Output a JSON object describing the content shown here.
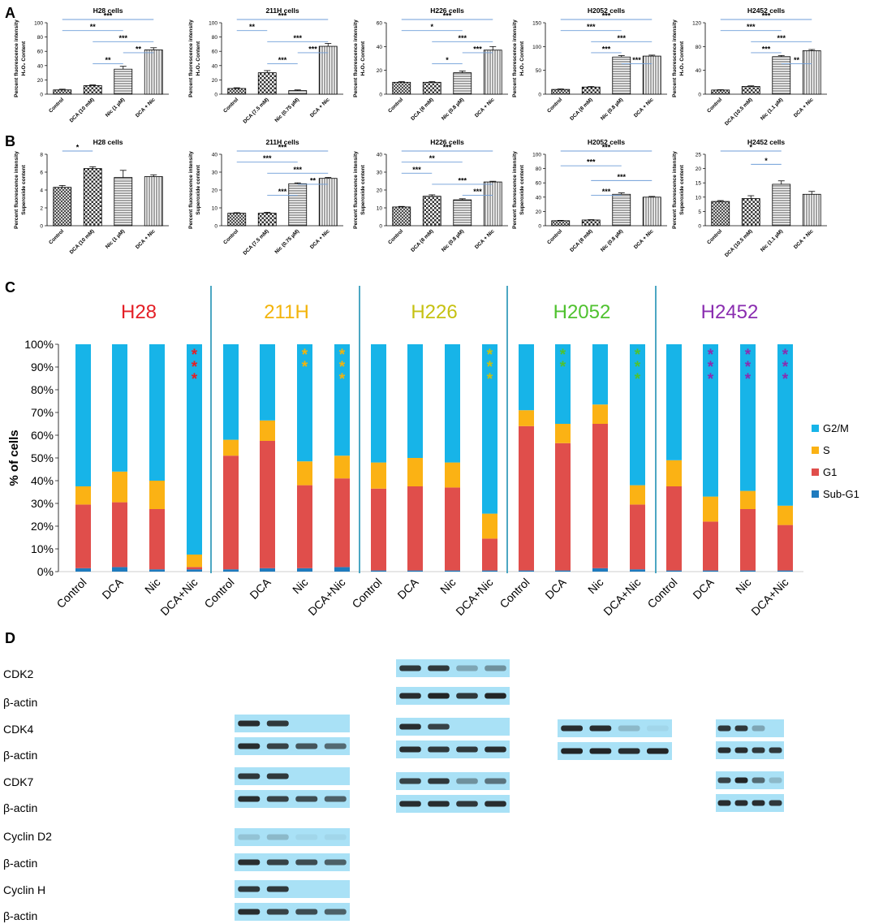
{
  "figure": {
    "panel_labels": [
      "A",
      "B",
      "C",
      "D"
    ],
    "colors": {
      "g2m": "#17b4e8",
      "s": "#fbb214",
      "g1": "#e04e4b",
      "subg1": "#1f7bbe",
      "sig_line": "#6f9ed8",
      "separator": "#1f91b4",
      "blot_bg": "#a9e1f6",
      "band": "#1a1a1a"
    }
  },
  "chart_data": [
    {
      "id": "A1",
      "type": "bar",
      "title": "H28 cells",
      "ylabel": "Percent fluorescence intensity",
      "ylabel2": "H₂O₂ Content",
      "ylim": [
        0,
        100
      ],
      "ticks": [
        0,
        20,
        40,
        60,
        80,
        100
      ],
      "categories": [
        "Control",
        "DCA (10 mM)",
        "Nic (1 µM)",
        "DCA + Nic"
      ],
      "values": [
        6,
        12,
        35,
        62
      ],
      "errors": [
        1,
        1,
        4,
        3
      ],
      "patterns": [
        "cross",
        "check",
        "hline",
        "vline"
      ],
      "sig": [
        {
          "a": 0,
          "b": 3,
          "label": "***"
        },
        {
          "a": 0,
          "b": 2,
          "label": "**"
        },
        {
          "a": 1,
          "b": 3,
          "label": "***"
        },
        {
          "a": 2,
          "b": 3,
          "label": "**"
        },
        {
          "a": 1,
          "b": 2,
          "label": "**"
        }
      ]
    },
    {
      "id": "A2",
      "type": "bar",
      "title": "211H cells",
      "ylabel": "Percent fluorescence intensity",
      "ylabel2": "H₂O₂ Content",
      "ylim": [
        0,
        100
      ],
      "ticks": [
        0,
        20,
        40,
        60,
        80,
        100
      ],
      "categories": [
        "Control",
        "DCA (7.5 mM)",
        "Nic (0.75 µM)",
        "DCA + Nic"
      ],
      "values": [
        8,
        30,
        5,
        67
      ],
      "errors": [
        1,
        3,
        1,
        4
      ],
      "patterns": [
        "cross",
        "check",
        "hline",
        "vline"
      ],
      "sig": [
        {
          "a": 0,
          "b": 3,
          "label": "***"
        },
        {
          "a": 0,
          "b": 1,
          "label": "**"
        },
        {
          "a": 1,
          "b": 3,
          "label": "***"
        },
        {
          "a": 2,
          "b": 3,
          "label": "***"
        },
        {
          "a": 1,
          "b": 2,
          "label": "***"
        }
      ]
    },
    {
      "id": "A3",
      "type": "bar",
      "title": "H226 cells",
      "ylabel": "Percent fluorescence intensity",
      "ylabel2": "H₂O₂ Content",
      "ylim": [
        0,
        60
      ],
      "ticks": [
        0,
        20,
        40,
        60
      ],
      "categories": [
        "Control",
        "DCA (8 mM)",
        "Nic (0.8 µM)",
        "DCA + Nic"
      ],
      "values": [
        10,
        10,
        18,
        37
      ],
      "errors": [
        0.5,
        0.5,
        1.5,
        3
      ],
      "patterns": [
        "cross",
        "check",
        "hline",
        "vline"
      ],
      "sig": [
        {
          "a": 0,
          "b": 3,
          "label": "***"
        },
        {
          "a": 0,
          "b": 2,
          "label": "*"
        },
        {
          "a": 1,
          "b": 3,
          "label": "***"
        },
        {
          "a": 2,
          "b": 3,
          "label": "***"
        },
        {
          "a": 1,
          "b": 2,
          "label": "*"
        }
      ]
    },
    {
      "id": "A4",
      "type": "bar",
      "title": "H2052 cells",
      "ylabel": "Percent fluorescence intensity",
      "ylabel2": "H₂O₂ Content",
      "ylim": [
        0,
        150
      ],
      "ticks": [
        0,
        50,
        100,
        150
      ],
      "categories": [
        "Control",
        "DCA (8 mM)",
        "Nic (0.8 µM)",
        "DCA + Nic"
      ],
      "values": [
        10,
        15,
        78,
        80
      ],
      "errors": [
        1,
        1,
        3,
        2
      ],
      "patterns": [
        "cross",
        "check",
        "hline",
        "vline"
      ],
      "sig": [
        {
          "a": 0,
          "b": 3,
          "label": "***"
        },
        {
          "a": 0,
          "b": 2,
          "label": "***"
        },
        {
          "a": 1,
          "b": 3,
          "label": "***"
        },
        {
          "a": 1,
          "b": 2,
          "label": "***"
        },
        {
          "a": 2,
          "b": 3,
          "label": "***"
        }
      ]
    },
    {
      "id": "A5",
      "type": "bar",
      "title": "H2452 cells",
      "ylabel": "Percent fluorescence intensity",
      "ylabel2": "H₂O₂ Content",
      "ylim": [
        0,
        120
      ],
      "ticks": [
        0,
        40,
        80,
        120
      ],
      "categories": [
        "Control",
        "DCA (10.5 mM)",
        "Nic (1.1 µM)",
        "DCA + Nic"
      ],
      "values": [
        7,
        13,
        63,
        73
      ],
      "errors": [
        0.5,
        1,
        2,
        2
      ],
      "patterns": [
        "cross",
        "check",
        "hline",
        "vline"
      ],
      "sig": [
        {
          "a": 0,
          "b": 3,
          "label": "***"
        },
        {
          "a": 0,
          "b": 2,
          "label": "***"
        },
        {
          "a": 1,
          "b": 3,
          "label": "***"
        },
        {
          "a": 1,
          "b": 2,
          "label": "***"
        },
        {
          "a": 2,
          "b": 3,
          "label": "**"
        }
      ]
    },
    {
      "id": "B1",
      "type": "bar",
      "title": "H28 cells",
      "ylabel": "Percent fluorescence intensity",
      "ylabel2": "Superoxide content",
      "ylim": [
        0,
        8
      ],
      "ticks": [
        0,
        2,
        4,
        6,
        8
      ],
      "categories": [
        "Control",
        "DCA (10 mM)",
        "Nic (1 µM)",
        "DCA + Nic"
      ],
      "values": [
        4.3,
        6.4,
        5.4,
        5.5
      ],
      "errors": [
        0.2,
        0.2,
        0.8,
        0.2
      ],
      "patterns": [
        "cross",
        "check",
        "hline",
        "vline"
      ],
      "sig": [
        {
          "a": 0,
          "b": 1,
          "label": "*"
        }
      ]
    },
    {
      "id": "B2",
      "type": "bar",
      "title": "211H cells",
      "ylabel": "Percent fluorescence intensity",
      "ylabel2": "Superoxide content",
      "ylim": [
        0,
        40
      ],
      "ticks": [
        0,
        10,
        20,
        30,
        40
      ],
      "categories": [
        "Control",
        "DCA (7.5 mM)",
        "Nic (0.75 µM)",
        "DCA + Nic"
      ],
      "values": [
        7,
        7,
        23.5,
        26.5
      ],
      "errors": [
        0.3,
        0.5,
        0.5,
        0.5
      ],
      "patterns": [
        "cross",
        "check",
        "hline",
        "vline"
      ],
      "sig": [
        {
          "a": 0,
          "b": 3,
          "label": "***"
        },
        {
          "a": 0,
          "b": 2,
          "label": "***"
        },
        {
          "a": 1,
          "b": 3,
          "label": "***"
        },
        {
          "a": 2,
          "b": 3,
          "label": "**"
        },
        {
          "a": 1,
          "b": 2,
          "label": "***"
        }
      ]
    },
    {
      "id": "B3",
      "type": "bar",
      "title": "H226 cells",
      "ylabel": "Percent fluorescence intensity",
      "ylabel2": "Superoxide content",
      "ylim": [
        0,
        40
      ],
      "ticks": [
        0,
        10,
        20,
        30,
        40
      ],
      "categories": [
        "Control",
        "DCA (8 mM)",
        "Nic (0.8 µM)",
        "DCA + Nic"
      ],
      "values": [
        10.5,
        16.5,
        14.5,
        24.5
      ],
      "errors": [
        0.3,
        0.8,
        0.6,
        0.4
      ],
      "patterns": [
        "cross",
        "check",
        "hline",
        "vline"
      ],
      "sig": [
        {
          "a": 0,
          "b": 3,
          "label": "***"
        },
        {
          "a": 0,
          "b": 2,
          "label": "**"
        },
        {
          "a": 0,
          "b": 1,
          "label": "***"
        },
        {
          "a": 1,
          "b": 3,
          "label": "***"
        },
        {
          "a": 2,
          "b": 3,
          "label": "***"
        }
      ]
    },
    {
      "id": "B4",
      "type": "bar",
      "title": "H2052 cells",
      "ylabel": "Percent fluorescence intensity",
      "ylabel2": "Superoxide content",
      "ylim": [
        0,
        100
      ],
      "ticks": [
        0,
        20,
        40,
        60,
        80,
        100
      ],
      "categories": [
        "Control",
        "DCA (8 mM)",
        "Nic (0.8 µM)",
        "DCA + Nic"
      ],
      "values": [
        7,
        8,
        44,
        40
      ],
      "errors": [
        0.5,
        0.5,
        2,
        1
      ],
      "patterns": [
        "cross",
        "check",
        "hline",
        "vline"
      ],
      "sig": [
        {
          "a": 0,
          "b": 3,
          "label": "***"
        },
        {
          "a": 0,
          "b": 2,
          "label": "***"
        },
        {
          "a": 1,
          "b": 3,
          "label": "***"
        },
        {
          "a": 1,
          "b": 2,
          "label": "***"
        }
      ]
    },
    {
      "id": "B5",
      "type": "bar",
      "title": "H2452 cells",
      "ylabel": "Percent fluorescence intensity",
      "ylabel2": "Superoxide content",
      "ylim": [
        0,
        25
      ],
      "ticks": [
        0,
        5,
        10,
        15,
        20,
        25
      ],
      "categories": [
        "Control",
        "DCA (10.5 mM)",
        "Nic (1.1 µM)",
        "DCA + Nic"
      ],
      "values": [
        8.5,
        9.5,
        14.5,
        11
      ],
      "errors": [
        0.3,
        1,
        1.2,
        1
      ],
      "patterns": [
        "cross",
        "check",
        "hline",
        "vline"
      ],
      "sig": [
        {
          "a": 0,
          "b": 2,
          "label": "*"
        },
        {
          "a": 1,
          "b": 2,
          "label": "*"
        }
      ]
    },
    {
      "id": "C",
      "type": "bar",
      "stacked": true,
      "ylabel": "% of cells",
      "ylim": [
        0,
        100
      ],
      "ticks": [
        "0%",
        "10%",
        "20%",
        "30%",
        "40%",
        "50%",
        "60%",
        "70%",
        "80%",
        "90%",
        "100%"
      ],
      "legend": [
        "G2/M",
        "S",
        "G1",
        "Sub-G1"
      ],
      "legend_position": "right",
      "series_order": [
        "Sub-G1",
        "G1",
        "S",
        "G2/M"
      ],
      "groups": [
        {
          "name": "H28",
          "color": "#e41f26",
          "categories": [
            "Control",
            "DCA",
            "Nic",
            "DCA+Nic"
          ],
          "values": [
            [
              1.5,
              28,
              8,
              62.5
            ],
            [
              2,
              28.5,
              13.5,
              56
            ],
            [
              1,
              26.5,
              12.5,
              60
            ],
            [
              1,
              1,
              5.5,
              92.5
            ]
          ],
          "stars": [
            0,
            0,
            0,
            3
          ]
        },
        {
          "name": "211H",
          "color": "#f3b40b",
          "categories": [
            "Control",
            "DCA",
            "Nic",
            "DCA+Nic"
          ],
          "values": [
            [
              1,
              50,
              7,
              42
            ],
            [
              1.5,
              56,
              9,
              33.5
            ],
            [
              1.5,
              36.5,
              10.5,
              51.5
            ],
            [
              2,
              39,
              10,
              49
            ]
          ],
          "stars": [
            0,
            0,
            2,
            3
          ]
        },
        {
          "name": "H226",
          "color": "#c6c112",
          "categories": [
            "Control",
            "DCA",
            "Nic",
            "DCA+Nic"
          ],
          "values": [
            [
              0.5,
              36,
              11.5,
              52
            ],
            [
              0.5,
              37,
              12.5,
              50
            ],
            [
              0.5,
              36.5,
              11,
              52
            ],
            [
              0.5,
              14,
              11,
              74.5
            ]
          ],
          "stars": [
            0,
            0,
            0,
            3
          ]
        },
        {
          "name": "H2052",
          "color": "#4fc22f",
          "categories": [
            "Control",
            "DCA",
            "Nic",
            "DCA+Nic"
          ],
          "values": [
            [
              0.5,
              63.5,
              7,
              29
            ],
            [
              0.5,
              56,
              8.5,
              35
            ],
            [
              1.5,
              63.5,
              8.5,
              26.5
            ],
            [
              1,
              28.5,
              8.5,
              62
            ]
          ],
          "stars": [
            0,
            2,
            0,
            3
          ]
        },
        {
          "name": "H2452",
          "color": "#8a2db0",
          "categories": [
            "Control",
            "DCA",
            "Nic",
            "DCA+Nic"
          ],
          "values": [
            [
              0.5,
              37,
              11.5,
              51
            ],
            [
              0.5,
              21.5,
              11,
              67
            ],
            [
              0.5,
              27,
              8,
              64.5
            ],
            [
              0.5,
              20,
              8.5,
              71
            ]
          ],
          "stars": [
            0,
            3,
            3,
            3
          ]
        }
      ]
    }
  ],
  "blots": {
    "labels": [
      "CDK2",
      "β-actin",
      "CDK4",
      "β-actin",
      "CDK7",
      "β-actin",
      "Cyclin D2",
      "β-actin",
      "Cyclin H",
      "β-actin"
    ],
    "panels": [
      {
        "column": "211H",
        "rows": [
          {
            "label": "CDK4",
            "intensity": [
              0.9,
              0.85,
              0,
              0
            ]
          },
          {
            "label": "β-actin",
            "intensity": [
              0.9,
              0.8,
              0.7,
              0.6
            ]
          },
          {
            "label": "CDK7",
            "intensity": [
              0.85,
              0.85,
              0,
              0
            ]
          },
          {
            "label": "β-actin",
            "intensity": [
              0.9,
              0.8,
              0.75,
              0.65
            ]
          },
          {
            "label": "Cyclin D2",
            "intensity": [
              0.15,
              0.2,
              0.05,
              0.05
            ]
          },
          {
            "label": "β-actin",
            "intensity": [
              0.9,
              0.8,
              0.75,
              0.65
            ]
          },
          {
            "label": "Cyclin H",
            "intensity": [
              0.85,
              0.85,
              0,
              0
            ]
          },
          {
            "label": "β-actin",
            "intensity": [
              0.9,
              0.8,
              0.75,
              0.65
            ]
          }
        ]
      },
      {
        "column": "H226",
        "rows": [
          {
            "label": "CDK2",
            "intensity": [
              0.85,
              0.85,
              0.3,
              0.4
            ]
          },
          {
            "label": "β-actin",
            "intensity": [
              0.9,
              0.95,
              0.85,
              0.95
            ]
          },
          {
            "label": "CDK4",
            "intensity": [
              0.9,
              0.8,
              0,
              0
            ]
          },
          {
            "label": "β-actin",
            "intensity": [
              0.9,
              0.85,
              0.85,
              0.9
            ]
          },
          {
            "label": "CDK7",
            "intensity": [
              0.8,
              0.85,
              0.4,
              0.55
            ]
          },
          {
            "label": "β-actin",
            "intensity": [
              0.9,
              0.9,
              0.85,
              0.9
            ]
          }
        ]
      },
      {
        "column": "H2052",
        "rows": [
          {
            "label": "CDK4",
            "intensity": [
              0.9,
              0.9,
              0.2,
              0.05
            ]
          },
          {
            "label": "β-actin",
            "intensity": [
              0.95,
              0.95,
              0.9,
              0.95
            ]
          }
        ]
      },
      {
        "column": "H2452",
        "rows": [
          {
            "label": "CDK4",
            "intensity": [
              0.85,
              0.85,
              0.3,
              0
            ]
          },
          {
            "label": "β-actin",
            "intensity": [
              0.9,
              0.9,
              0.85,
              0.85
            ]
          },
          {
            "label": "CDK7",
            "intensity": [
              0.8,
              0.95,
              0.6,
              0.2
            ]
          },
          {
            "label": "β-actin",
            "intensity": [
              0.9,
              0.9,
              0.9,
              0.85
            ]
          }
        ]
      }
    ]
  }
}
